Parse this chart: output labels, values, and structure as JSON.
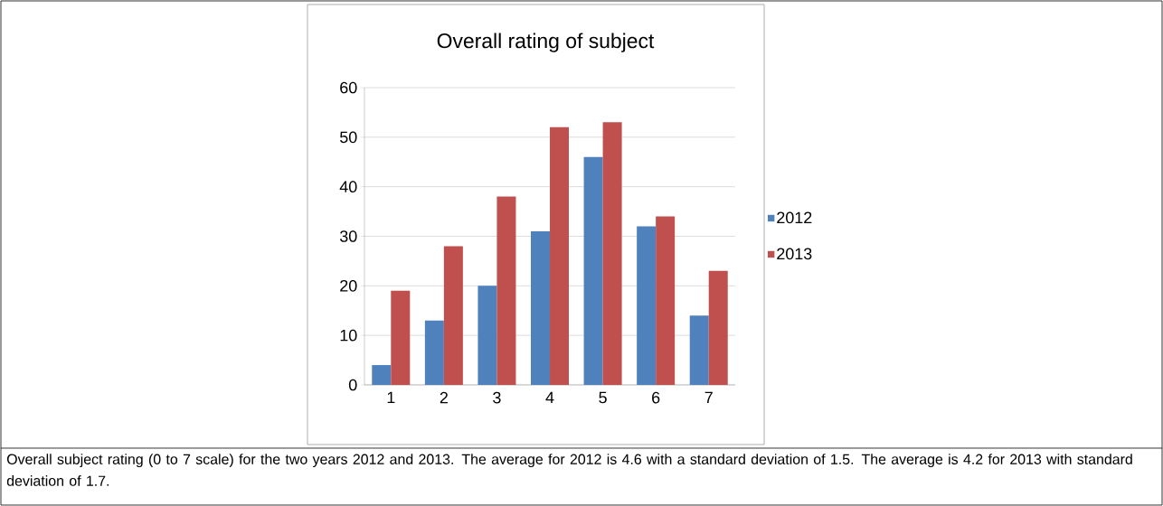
{
  "chart_data": {
    "type": "bar",
    "title": "Overall rating of subject",
    "categories": [
      "1",
      "2",
      "3",
      "4",
      "5",
      "6",
      "7"
    ],
    "series": [
      {
        "name": "2012",
        "color": "#4f81bd",
        "values": [
          4,
          13,
          20,
          31,
          46,
          32,
          14
        ]
      },
      {
        "name": "2013",
        "color": "#c0504d",
        "values": [
          19,
          28,
          38,
          52,
          53,
          34,
          23
        ]
      }
    ],
    "ylim": [
      0,
      60
    ],
    "yticks": [
      0,
      10,
      20,
      30,
      40,
      50,
      60
    ],
    "grid": "y",
    "legend": "right",
    "annotations": [
      "Overall subject rating (0 to 7 scale) for the two years 2012 and 2013.  The average for 2012 is 4.6 with a standard deviation of 1.5.  The average is 4.2 for 2013 with standard deviation of 1.7."
    ]
  }
}
